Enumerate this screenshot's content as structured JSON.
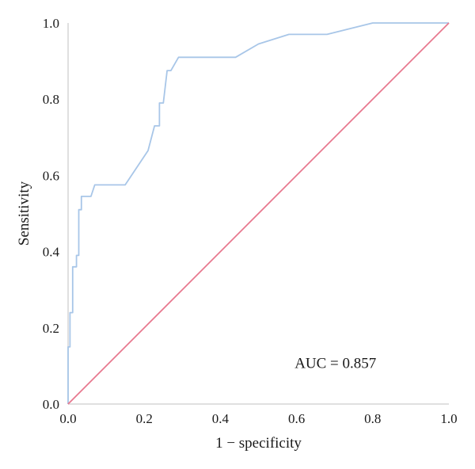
{
  "chart_data": {
    "type": "line",
    "title": "",
    "xlabel": "1 − specificity",
    "ylabel": "Sensitivity",
    "xlim": [
      0,
      1
    ],
    "ylim": [
      0,
      1
    ],
    "grid": false,
    "x_ticks": [
      "0.0",
      "0.2",
      "0.4",
      "0.6",
      "0.8",
      "1.0"
    ],
    "y_ticks": [
      "0.0",
      "0.2",
      "0.4",
      "0.6",
      "0.8",
      "1.0"
    ],
    "annotation": "AUC = 0.857",
    "series": [
      {
        "name": "",
        "color": "#a8c6e8",
        "points": [
          [
            0.0,
            0.0
          ],
          [
            0.0,
            0.15
          ],
          [
            0.005,
            0.15
          ],
          [
            0.005,
            0.24
          ],
          [
            0.012,
            0.24
          ],
          [
            0.012,
            0.36
          ],
          [
            0.022,
            0.36
          ],
          [
            0.022,
            0.39
          ],
          [
            0.028,
            0.39
          ],
          [
            0.028,
            0.51
          ],
          [
            0.035,
            0.51
          ],
          [
            0.035,
            0.545
          ],
          [
            0.06,
            0.545
          ],
          [
            0.07,
            0.575
          ],
          [
            0.15,
            0.575
          ],
          [
            0.21,
            0.665
          ],
          [
            0.227,
            0.73
          ],
          [
            0.24,
            0.73
          ],
          [
            0.24,
            0.79
          ],
          [
            0.25,
            0.79
          ],
          [
            0.26,
            0.875
          ],
          [
            0.27,
            0.875
          ],
          [
            0.29,
            0.91
          ],
          [
            0.44,
            0.91
          ],
          [
            0.5,
            0.945
          ],
          [
            0.58,
            0.97
          ],
          [
            0.68,
            0.97
          ],
          [
            0.8,
            1.0
          ],
          [
            1.0,
            1.0
          ]
        ]
      },
      {
        "name": "",
        "color": "#e8798f",
        "points": [
          [
            0,
            0
          ],
          [
            1,
            1
          ]
        ]
      }
    ]
  }
}
